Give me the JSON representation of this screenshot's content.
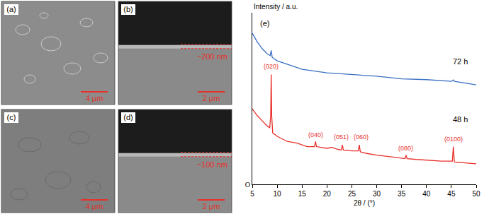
{
  "chart_data": {
    "type": "line",
    "panel_label": "(e)",
    "x_label": "2θ / (°)",
    "y_label": "Intensity / a.u.",
    "xlim": [
      5,
      50
    ],
    "xticks": [
      5,
      10,
      15,
      20,
      25,
      30,
      35,
      40,
      45,
      50
    ],
    "ylim": [
      0,
      100
    ],
    "yticks": [
      {
        "value": 0,
        "label": "O"
      }
    ],
    "grid": false,
    "series": [
      {
        "name": "72 h",
        "color": "#3a6fc4",
        "x": [
          5,
          6,
          7,
          8,
          8.6,
          8.8,
          9.0,
          10,
          12,
          15,
          20,
          25,
          30,
          35,
          40,
          45,
          45.4,
          45.6,
          50
        ],
        "values": [
          88,
          83,
          79,
          76,
          75,
          78,
          74,
          72,
          70,
          67,
          65,
          64,
          63,
          61.5,
          61,
          60,
          60.8,
          60,
          58
        ]
      },
      {
        "name": "48 h",
        "color": "#e8302a",
        "x": [
          5,
          6,
          7,
          8,
          8.5,
          8.7,
          8.8,
          8.9,
          9.1,
          10,
          12,
          14,
          16,
          17.5,
          17.7,
          17.9,
          20,
          21,
          22,
          22.9,
          23.1,
          23.3,
          25,
          26.3,
          26.5,
          26.7,
          28,
          30,
          33,
          35.7,
          35.9,
          36.1,
          38,
          40,
          43,
          45.2,
          45.4,
          45.6,
          48,
          50
        ],
        "values": [
          44,
          40,
          37,
          34,
          33,
          40,
          64,
          40,
          30,
          28,
          25,
          24,
          22,
          22,
          25,
          22,
          21,
          21.5,
          20.5,
          20,
          23,
          20,
          19.5,
          19.5,
          23,
          19,
          18,
          17,
          16,
          15,
          17,
          15,
          14.5,
          14,
          13.5,
          13.5,
          22,
          13,
          12.5,
          12
        ]
      }
    ],
    "annotations": [
      {
        "text": "(020)",
        "x": 8.8,
        "y": 66,
        "color": "#e8302a"
      },
      {
        "text": "(040)",
        "x": 17.7,
        "y": 26,
        "color": "#e8302a"
      },
      {
        "text": "(051)",
        "x": 22.9,
        "y": 24.5,
        "color": "#e8302a"
      },
      {
        "text": "(060)",
        "x": 26.8,
        "y": 24.5,
        "color": "#e8302a"
      },
      {
        "text": "(080)",
        "x": 35.9,
        "y": 18,
        "color": "#e8302a"
      },
      {
        "text": "(0100)",
        "x": 45.4,
        "y": 23.5,
        "color": "#e8302a"
      }
    ]
  },
  "micrographs": [
    {
      "label": "(a)",
      "scale_bar": "4 μm"
    },
    {
      "label": "(b)",
      "scale_bar": "2 μm",
      "thickness": "~200 nm"
    },
    {
      "label": "(c)",
      "scale_bar": "4 μm"
    },
    {
      "label": "(d)",
      "scale_bar": "2 μm",
      "thickness": "~100 nm"
    }
  ]
}
